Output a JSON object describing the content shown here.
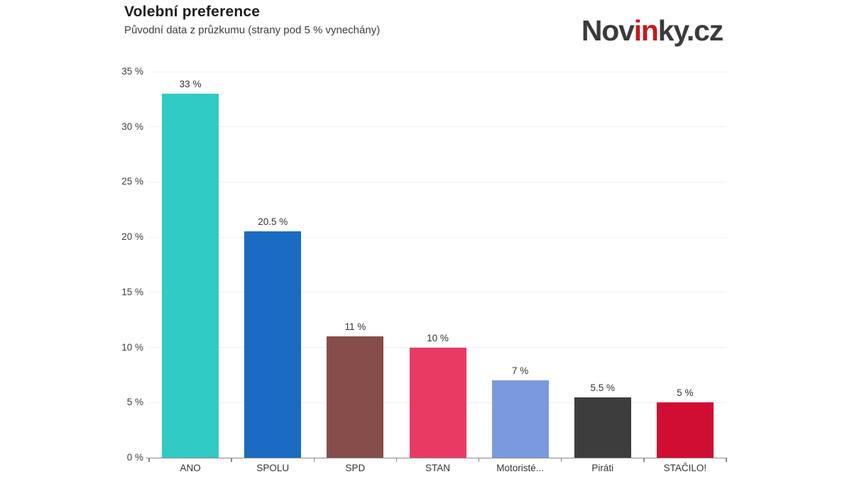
{
  "header": {
    "title": "Volební preference",
    "subtitle": "Původní data z průzkumu (strany pod 5 % vynechány)",
    "logo": {
      "part1": "Nov",
      "part2": "in",
      "part3": "ky.cz",
      "dark_color": "#3b3b3b",
      "accent_color": "#c3191d"
    }
  },
  "chart_data": {
    "type": "bar",
    "title": "Volební preference",
    "subtitle": "Původní data z průzkumu (strany pod 5 % vynechány)",
    "categories": [
      "ANO",
      "SPOLU",
      "SPD",
      "STAN",
      "Motoristé...",
      "Piráti",
      "STAČILO!"
    ],
    "values": [
      33,
      20.5,
      11,
      10,
      7,
      5.5,
      5
    ],
    "value_labels": [
      "33 %",
      "20.5 %",
      "11 %",
      "10 %",
      "7 %",
      "5.5 %",
      "5 %"
    ],
    "bar_colors": [
      "#30cbc4",
      "#1c6bc2",
      "#864d4b",
      "#e93a63",
      "#7b99de",
      "#3d3d3d",
      "#d00d33"
    ],
    "xlabel": "",
    "ylabel": "",
    "ylim": [
      0,
      35
    ],
    "ytick_step": 5,
    "ytick_labels": [
      "0 %",
      "5 %",
      "10 %",
      "15 %",
      "20 %",
      "25 %",
      "30 %",
      "35 %"
    ],
    "grid": true,
    "grid_color": "#efefef",
    "axis_color": "#8a8a8a",
    "label_color": "#333333",
    "legend": false
  }
}
